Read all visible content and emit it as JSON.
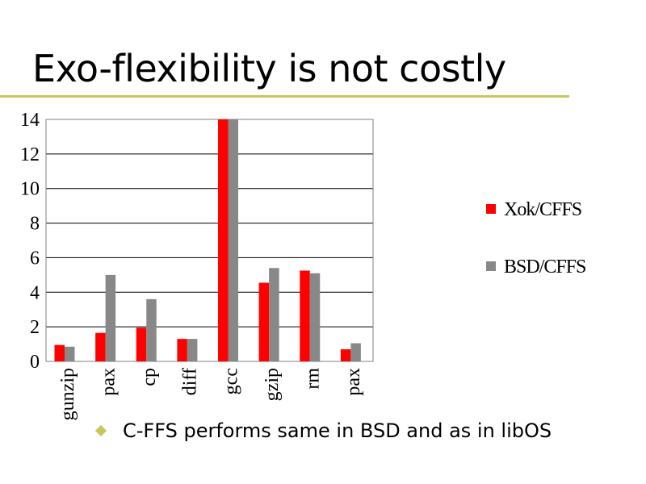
{
  "slide": {
    "title": "Exo-flexibility is not costly",
    "bullet": "C-FFS performs same in BSD and as in libOS",
    "accent_color": "#c8c85a",
    "bullet_icon": "diamond-bullet-icon"
  },
  "chart_data": {
    "type": "bar",
    "categories": [
      "gunzip",
      "pax",
      "cp",
      "diff",
      "gcc",
      "gzip",
      "rm",
      "pax"
    ],
    "series": [
      {
        "name": "Xok/CFFS",
        "color": "#ff0000",
        "values": [
          0.95,
          1.65,
          1.95,
          1.3,
          14,
          4.55,
          5.25,
          0.7
        ]
      },
      {
        "name": "BSD/CFFS",
        "color": "#888888",
        "values": [
          0.85,
          5.0,
          3.6,
          1.3,
          14,
          5.4,
          5.1,
          1.05
        ]
      }
    ],
    "ylim": [
      0,
      14
    ],
    "yticks": [
      0,
      2,
      4,
      6,
      8,
      10,
      12,
      14
    ],
    "grid": true,
    "legend": "right"
  }
}
